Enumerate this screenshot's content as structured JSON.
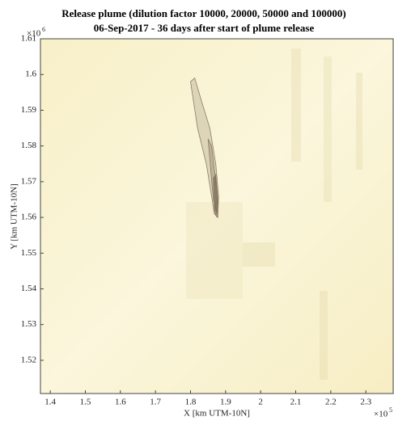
{
  "chart_data": {
    "type": "map",
    "title": "Release plume (dilution factor 10000, 20000, 50000 and 100000)",
    "subtitle": "06-Sep-2017 - 36 days after start of plume release",
    "x_label": "X [km UTM-10N]",
    "y_label": "Y [km UTM-10N]",
    "x_multiplier": "×10",
    "x_multiplier_exponent": "5",
    "y_multiplier": "×10",
    "y_multiplier_exponent": "6",
    "xlim": [
      1.372,
      2.378
    ],
    "ylim": [
      1.5107,
      1.61
    ],
    "xticks": [
      1.4,
      1.5,
      1.6,
      1.7,
      1.8,
      1.9,
      2,
      2.1,
      2.2,
      2.3
    ],
    "yticks": [
      1.52,
      1.53,
      1.54,
      1.55,
      1.56,
      1.57,
      1.58,
      1.59,
      1.6,
      1.61
    ],
    "contours": [
      {
        "color": "#c9bfa4",
        "x": [
          1.8,
          1.82,
          1.845,
          1.86,
          1.868,
          1.878,
          1.88,
          1.872,
          1.855,
          1.83,
          1.812
        ],
        "y": [
          1.598,
          1.585,
          1.575,
          1.566,
          1.561,
          1.56,
          1.566,
          1.575,
          1.585,
          1.593,
          1.599
        ]
      },
      {
        "color": "#a99a80",
        "x": [
          1.85,
          1.865,
          1.876,
          1.876,
          1.86
        ],
        "y": [
          1.582,
          1.565,
          1.561,
          1.567,
          1.58
        ]
      },
      {
        "color": "#6b5a48",
        "x": [
          1.865,
          1.868,
          1.875,
          1.878,
          1.872
        ],
        "y": [
          1.571,
          1.562,
          1.56,
          1.565,
          1.572
        ]
      }
    ]
  }
}
